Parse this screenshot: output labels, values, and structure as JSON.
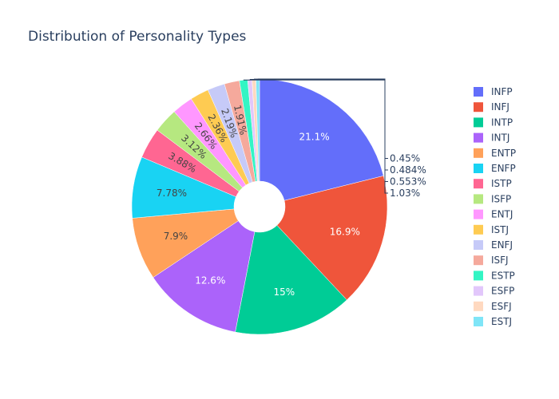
{
  "chart_data": {
    "type": "pie",
    "hole": true,
    "title": "Distribution of Personality Types",
    "legend_position": "right",
    "slices": [
      {
        "label": "INFP",
        "value": 21.1,
        "text": "21.1%",
        "color": "#636efa"
      },
      {
        "label": "INFJ",
        "value": 16.9,
        "text": "16.9%",
        "color": "#EF553B"
      },
      {
        "label": "INTP",
        "value": 15.0,
        "text": "15%",
        "color": "#00cc96"
      },
      {
        "label": "INTJ",
        "value": 12.6,
        "text": "12.6%",
        "color": "#ab63fa"
      },
      {
        "label": "ENTP",
        "value": 7.9,
        "text": "7.9%",
        "color": "#FFA15A"
      },
      {
        "label": "ENFP",
        "value": 7.78,
        "text": "7.78%",
        "color": "#19d3f3"
      },
      {
        "label": "ISTP",
        "value": 3.88,
        "text": "3.88%",
        "color": "#FF6692"
      },
      {
        "label": "ISFP",
        "value": 3.12,
        "text": "3.12%",
        "color": "#B6E880"
      },
      {
        "label": "ENTJ",
        "value": 2.66,
        "text": "2.66%",
        "color": "#FF97FF"
      },
      {
        "label": "ISTJ",
        "value": 2.36,
        "text": "2.36%",
        "color": "#FECB52"
      },
      {
        "label": "ENFJ",
        "value": 2.19,
        "text": "2.19%",
        "color": "#c6caf8"
      },
      {
        "label": "ISFJ",
        "value": 1.91,
        "text": "1.91%",
        "color": "#f5a99c"
      },
      {
        "label": "ESTP",
        "value": 1.03,
        "text": "1.03%",
        "color": "#33f5c4"
      },
      {
        "label": "ESFP",
        "value": 0.553,
        "text": "0.553%",
        "color": "#e2c7fb"
      },
      {
        "label": "ESFJ",
        "value": 0.484,
        "text": "0.484%",
        "color": "#ffd9c0"
      },
      {
        "label": "ESTJ",
        "value": 0.45,
        "text": "0.45%",
        "color": "#7fe5f7"
      }
    ]
  }
}
